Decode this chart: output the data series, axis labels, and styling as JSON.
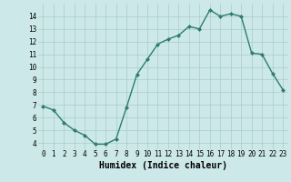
{
  "x": [
    0,
    1,
    2,
    3,
    4,
    5,
    6,
    7,
    8,
    9,
    10,
    11,
    12,
    13,
    14,
    15,
    16,
    17,
    18,
    19,
    20,
    21,
    22,
    23
  ],
  "y": [
    6.9,
    6.6,
    5.6,
    5.0,
    4.6,
    3.9,
    3.9,
    4.3,
    6.8,
    9.4,
    10.6,
    11.8,
    12.2,
    12.5,
    13.2,
    13.0,
    14.5,
    14.0,
    14.2,
    14.0,
    11.1,
    11.0,
    9.5,
    8.2
  ],
  "line_color": "#2d7d6e",
  "marker": "D",
  "marker_size": 2.0,
  "linewidth": 1.0,
  "xlabel": "Humidex (Indice chaleur)",
  "ylim": [
    3.5,
    15.0
  ],
  "xlim": [
    -0.5,
    23.5
  ],
  "yticks": [
    4,
    5,
    6,
    7,
    8,
    9,
    10,
    11,
    12,
    13,
    14
  ],
  "xticks": [
    0,
    1,
    2,
    3,
    4,
    5,
    6,
    7,
    8,
    9,
    10,
    11,
    12,
    13,
    14,
    15,
    16,
    17,
    18,
    19,
    20,
    21,
    22,
    23
  ],
  "bg_color": "#cce8e8",
  "grid_color": "#aacccc",
  "tick_fontsize": 5.5,
  "xlabel_fontsize": 7.0
}
